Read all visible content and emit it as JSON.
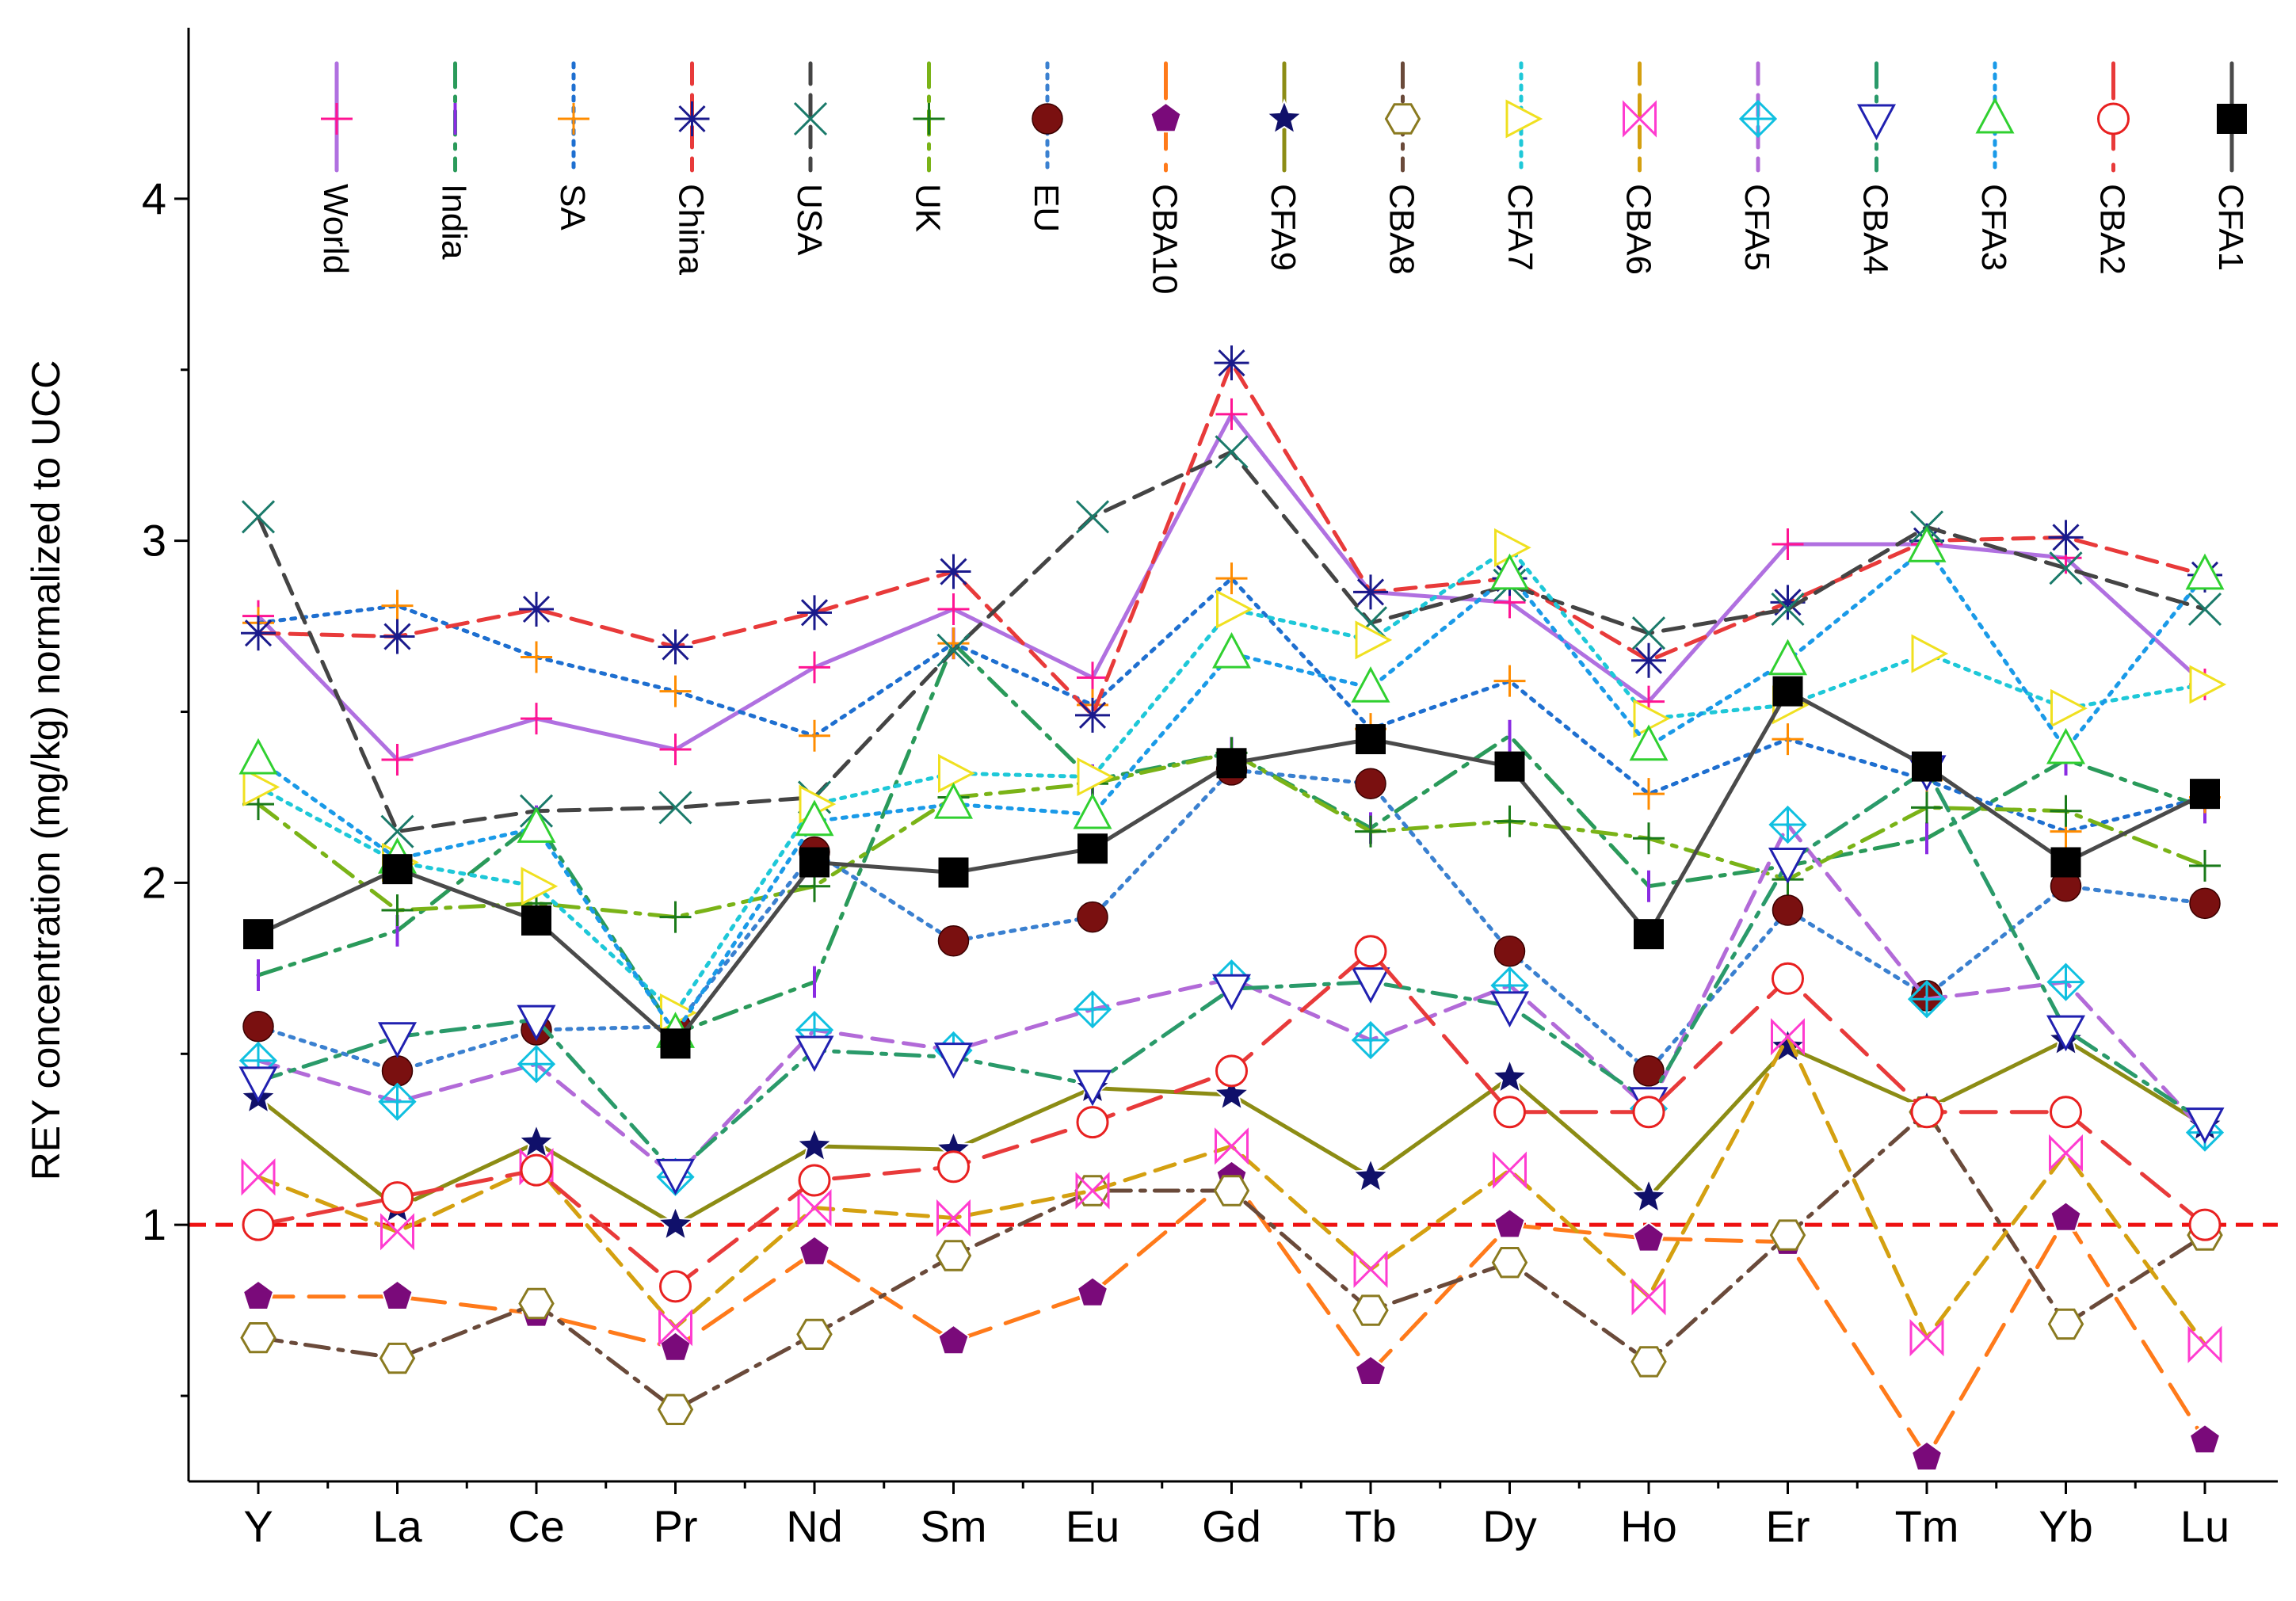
{
  "chart_data": {
    "type": "line",
    "title": "",
    "xlabel": "",
    "ylabel": "REY concentration (mg/kg) normalized to UCC",
    "ylim": [
      0.25,
      4.5
    ],
    "yticks": [
      1,
      2,
      3,
      4
    ],
    "yminor_ticks": [
      0.5,
      1.5,
      2.5,
      3.5
    ],
    "categories": [
      "Y",
      "La",
      "Ce",
      "Pr",
      "Nd",
      "Sm",
      "Eu",
      "Gd",
      "Tb",
      "Dy",
      "Ho",
      "Er",
      "Tm",
      "Yb",
      "Lu"
    ],
    "reference_line": {
      "y": 1,
      "color": "#ee1111"
    },
    "legend_position": "top",
    "series": [
      {
        "name": "World",
        "color": "#b070e0",
        "marker": "plus",
        "marker_color": "#ff1493",
        "dash": "solid",
        "values": [
          2.78,
          2.36,
          2.48,
          2.39,
          2.63,
          2.8,
          2.6,
          3.37,
          2.85,
          2.82,
          2.53,
          2.99,
          2.99,
          2.95,
          2.58
        ]
      },
      {
        "name": "India",
        "color": "#2a9a5a",
        "marker": "vbar",
        "marker_color": "#8a2be2",
        "dash": "dashdot",
        "values": [
          1.73,
          1.86,
          2.18,
          1.56,
          1.71,
          2.7,
          2.3,
          2.38,
          2.16,
          2.43,
          1.99,
          2.05,
          2.13,
          2.36,
          2.22
        ]
      },
      {
        "name": "SA",
        "color": "#1e6fd0",
        "marker": "plus",
        "marker_color": "#ff8c00",
        "dash": "dot",
        "values": [
          2.76,
          2.81,
          2.66,
          2.56,
          2.43,
          2.7,
          2.52,
          2.89,
          2.45,
          2.59,
          2.26,
          2.42,
          2.3,
          2.15,
          2.25
        ]
      },
      {
        "name": "China",
        "color": "#e83a3a",
        "marker": "asterisk",
        "marker_color": "#1a1a8c",
        "dash": "dash",
        "values": [
          2.73,
          2.72,
          2.8,
          2.69,
          2.79,
          2.91,
          2.49,
          3.52,
          2.85,
          2.89,
          2.65,
          2.82,
          3.0,
          3.01,
          2.9
        ]
      },
      {
        "name": "USA",
        "color": "#444444",
        "marker": "x",
        "marker_color": "#1a7a6a",
        "dash": "dash",
        "values": [
          3.07,
          2.15,
          2.21,
          2.22,
          2.25,
          2.68,
          3.07,
          3.26,
          2.76,
          2.87,
          2.73,
          2.8,
          3.04,
          2.92,
          2.8
        ]
      },
      {
        "name": "UK",
        "color": "#7ab317",
        "marker": "plus",
        "marker_color": "#1a7a1a",
        "dash": "dashdot",
        "values": [
          2.23,
          1.92,
          1.94,
          1.9,
          1.99,
          2.25,
          2.29,
          2.38,
          2.15,
          2.18,
          2.13,
          2.01,
          2.22,
          2.21,
          2.05
        ]
      },
      {
        "name": "EU",
        "color": "#3a80d0",
        "marker": "ball",
        "marker_color": "#7a1010",
        "dash": "dot",
        "values": [
          1.58,
          1.45,
          1.57,
          1.58,
          2.09,
          1.83,
          1.9,
          2.33,
          2.29,
          1.8,
          1.45,
          1.92,
          1.67,
          1.99,
          1.94
        ]
      },
      {
        "name": "CBA10",
        "color": "#ff7a1a",
        "marker": "pentagon",
        "marker_color": "#7a0a7a",
        "dash": "longdash",
        "values": [
          0.79,
          0.79,
          0.74,
          0.64,
          0.92,
          0.66,
          0.8,
          1.14,
          0.57,
          1.0,
          0.96,
          0.95,
          0.32,
          1.02,
          0.37
        ]
      },
      {
        "name": "CFA9",
        "color": "#8c8c14",
        "marker": "star",
        "marker_color": "#10106a",
        "dash": "solid",
        "values": [
          1.37,
          1.05,
          1.24,
          1.0,
          1.23,
          1.22,
          1.4,
          1.38,
          1.14,
          1.43,
          1.08,
          1.52,
          1.34,
          1.54,
          1.29
        ]
      },
      {
        "name": "CBA8",
        "color": "#6a4a3a",
        "marker": "hexagon",
        "marker_color": "#8a7a20",
        "dash": "dashdot",
        "values": [
          0.67,
          0.61,
          0.77,
          0.46,
          0.68,
          0.91,
          1.1,
          1.1,
          0.75,
          0.89,
          0.6,
          0.97,
          1.33,
          0.71,
          0.97
        ]
      },
      {
        "name": "CFA7",
        "color": "#1ec8d8",
        "marker": "triangle-right",
        "marker_color": "#f0e020",
        "dash": "dot",
        "values": [
          2.28,
          2.06,
          1.99,
          1.62,
          2.23,
          2.32,
          2.31,
          2.8,
          2.71,
          2.98,
          2.48,
          2.52,
          2.67,
          2.51,
          2.58
        ]
      },
      {
        "name": "CBA6",
        "color": "#d4a010",
        "marker": "bowtie",
        "marker_color": "#ff3cd0",
        "dash": "dash",
        "values": [
          1.14,
          0.98,
          1.17,
          0.7,
          1.05,
          1.02,
          1.1,
          1.23,
          0.87,
          1.16,
          0.79,
          1.55,
          0.67,
          1.21,
          0.65
        ]
      },
      {
        "name": "CFA5",
        "color": "#b26ad8",
        "marker": "crossed-diamond",
        "marker_color": "#10c0e0",
        "dash": "dash",
        "values": [
          1.48,
          1.36,
          1.47,
          1.14,
          1.57,
          1.51,
          1.63,
          1.72,
          1.54,
          1.7,
          1.34,
          2.17,
          1.66,
          1.71,
          1.27
        ]
      },
      {
        "name": "CBA4",
        "color": "#2a9a6a",
        "marker": "triangle-down",
        "marker_color": "#2020b0",
        "dash": "dashdot",
        "values": [
          1.42,
          1.55,
          1.6,
          1.15,
          1.51,
          1.49,
          1.41,
          1.69,
          1.71,
          1.64,
          1.36,
          2.06,
          2.33,
          1.57,
          1.3
        ]
      },
      {
        "name": "CFA3",
        "color": "#1a9ae8",
        "marker": "triangle-up",
        "marker_color": "#30d030",
        "dash": "dot",
        "values": [
          2.36,
          2.07,
          2.16,
          1.56,
          2.18,
          2.23,
          2.2,
          2.67,
          2.57,
          2.9,
          2.4,
          2.65,
          2.98,
          2.39,
          2.9
        ]
      },
      {
        "name": "CBA2",
        "color": "#e83a3a",
        "marker": "circle",
        "marker_color": "#e82020",
        "dash": "longdash",
        "values": [
          1.0,
          1.08,
          1.16,
          0.82,
          1.13,
          1.17,
          1.3,
          1.45,
          1.8,
          1.33,
          1.33,
          1.72,
          1.33,
          1.33,
          1.0
        ]
      },
      {
        "name": "CFA1",
        "color": "#4a4a4a",
        "marker": "square",
        "marker_color": "#000000",
        "dash": "solid",
        "values": [
          1.85,
          2.04,
          1.89,
          1.53,
          2.06,
          2.03,
          2.1,
          2.35,
          2.42,
          2.34,
          1.85,
          2.56,
          2.34,
          2.06,
          2.26
        ]
      }
    ]
  }
}
